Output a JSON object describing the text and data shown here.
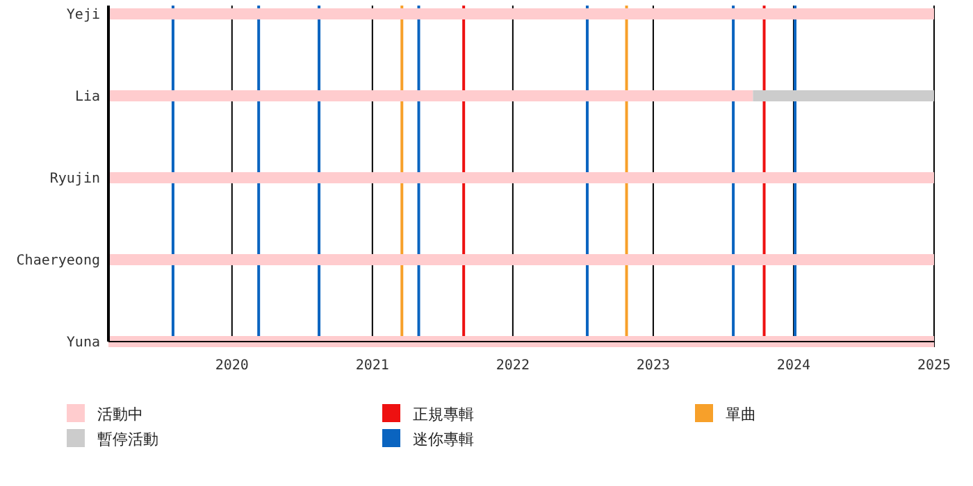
{
  "chart_data": {
    "type": "bar",
    "orientation": "horizontal",
    "categories": [
      "Yeji",
      "Lia",
      "Ryujin",
      "Chaeryeong",
      "Yuna"
    ],
    "series": [
      {
        "name": "活動中",
        "color": "#ffccce",
        "base": [
          2019.12,
          2019.12,
          2019.12,
          2019.12,
          2019.12
        ],
        "values": [
          5.88,
          4.59,
          5.88,
          5.88,
          5.88
        ]
      },
      {
        "name": "暫停活動",
        "color": "#cccccc",
        "base": [
          null,
          2023.71,
          null,
          null,
          null
        ],
        "values": [
          null,
          1.29,
          null,
          null,
          null
        ]
      },
      {
        "name": "正規專輯",
        "color": "#ee1111",
        "values": [
          null,
          null,
          null,
          null,
          null
        ]
      },
      {
        "name": "迷你專輯",
        "color": "#0a64c0",
        "values": [
          null,
          null,
          null,
          null,
          null
        ]
      },
      {
        "name": "單曲",
        "color": "#f7a02a",
        "values": [
          null,
          null,
          null,
          null,
          null
        ]
      }
    ],
    "xlim": [
      2019.12,
      2025.0
    ],
    "xticks": [
      2020,
      2021,
      2022,
      2023,
      2024,
      2025
    ],
    "grid": "x",
    "legend": "bottom",
    "ref_lines": [
      {
        "axis": "x",
        "value": 2019.58,
        "color": "#0a64c0"
      },
      {
        "axis": "x",
        "value": 2020.19,
        "color": "#0a64c0"
      },
      {
        "axis": "x",
        "value": 2020.62,
        "color": "#0a64c0"
      },
      {
        "axis": "x",
        "value": 2021.21,
        "color": "#f7a02a"
      },
      {
        "axis": "x",
        "value": 2021.33,
        "color": "#0a64c0"
      },
      {
        "axis": "x",
        "value": 2021.65,
        "color": "#ee1111"
      },
      {
        "axis": "x",
        "value": 2022.53,
        "color": "#0a64c0"
      },
      {
        "axis": "x",
        "value": 2022.81,
        "color": "#f7a02a"
      },
      {
        "axis": "x",
        "value": 2023.57,
        "color": "#0a64c0"
      },
      {
        "axis": "x",
        "value": 2023.79,
        "color": "#ee1111"
      },
      {
        "axis": "x",
        "value": 2024.01,
        "color": "#0a64c0"
      }
    ]
  }
}
